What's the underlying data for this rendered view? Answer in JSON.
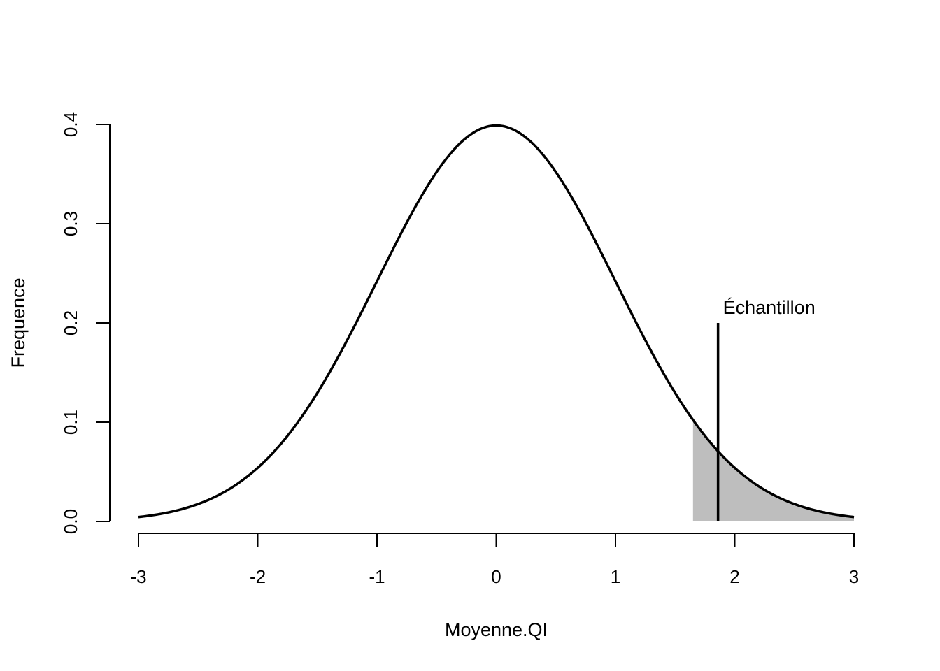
{
  "chart_data": {
    "type": "area",
    "title": "",
    "xlabel": "Moyenne.QI",
    "ylabel": "Frequence",
    "xlim": [
      -3,
      3
    ],
    "ylim": [
      0,
      0.4
    ],
    "x_ticks": [
      "-3",
      "-2",
      "-1",
      "0",
      "1",
      "2",
      "3"
    ],
    "y_ticks": [
      "0.0",
      "0.1",
      "0.2",
      "0.3",
      "0.4"
    ],
    "curve": {
      "distribution": "normal",
      "mean": 0,
      "sd": 1,
      "color": "#000000"
    },
    "shaded_region": {
      "from": 1.65,
      "to": 3,
      "color": "#bebebe"
    },
    "marker": {
      "x": 1.86,
      "y_from": 0,
      "y_to": 0.2,
      "label": "Échantillon",
      "color": "#000000"
    },
    "grid": false,
    "legend": "none"
  }
}
